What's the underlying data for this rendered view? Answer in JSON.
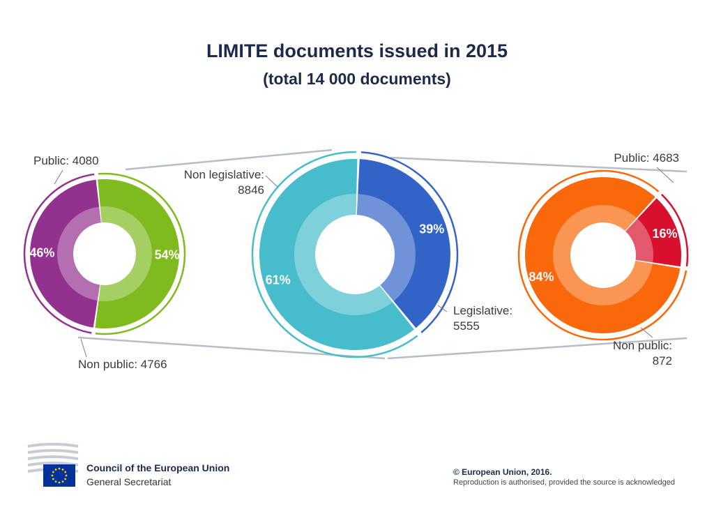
{
  "title": "LIMITE documents issued in 2015",
  "subtitle": "(total 14 000 documents)",
  "chart_data": [
    {
      "type": "pie",
      "variant": "donut",
      "title": "",
      "slices": [
        {
          "label": "Public:  4080",
          "value": 4080,
          "pct_label": "46%",
          "color": "#93318f"
        },
        {
          "label": "Non public: 4766",
          "value": 4766,
          "pct_label": "54%",
          "color": "#7fba1f"
        }
      ]
    },
    {
      "type": "pie",
      "variant": "donut",
      "title": "",
      "slices": [
        {
          "label_lines": [
            "Non legislative:",
            "8846"
          ],
          "value": 8846,
          "pct_label": "61%",
          "color": "#47bccb"
        },
        {
          "label_lines": [
            "Legislative:",
            "5555"
          ],
          "value": 5555,
          "pct_label": "39%",
          "color": "#3264c8"
        }
      ]
    },
    {
      "type": "pie",
      "variant": "donut",
      "title": "",
      "slices": [
        {
          "label": "Public: 4683",
          "value": 4683,
          "pct_label": "84%",
          "color": "#f9680a"
        },
        {
          "label_lines": [
            "Non public:",
            "872"
          ],
          "value": 872,
          "pct_label": "16%",
          "color": "#d8102e"
        }
      ]
    }
  ],
  "footer": {
    "org": "Council of the European Union",
    "department": "General Secretariat",
    "copyright": "© European Union, 2016.",
    "reproduction": "Reproduction is authorised, provided the source is acknowledged"
  },
  "colors": {
    "title": "#1b2a4a",
    "connector": "#b8bcc4",
    "eu_blue": "#003399",
    "eu_gold": "#ffcc00"
  }
}
